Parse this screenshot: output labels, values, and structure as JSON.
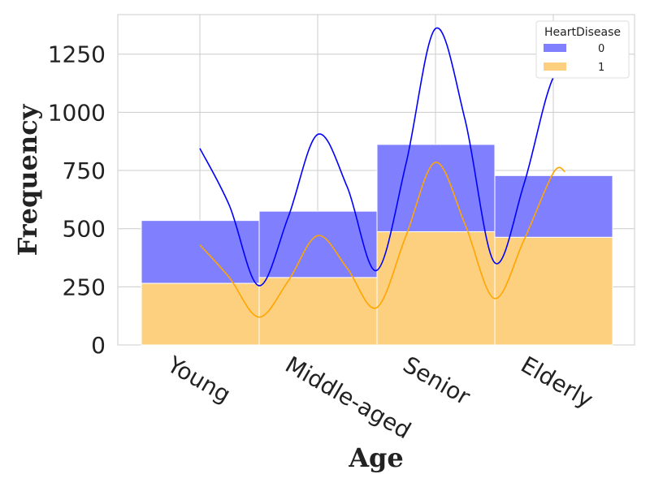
{
  "chart_data": {
    "type": "bar",
    "stacked": true,
    "xlabel": "Age",
    "ylabel": "Frequency",
    "categories": [
      "Young",
      "Middle-aged",
      "Senior",
      "Elderly"
    ],
    "series": [
      {
        "name": "0",
        "values": [
          270,
          285,
          375,
          265
        ],
        "color": "#8080ff"
      },
      {
        "name": "1",
        "values": [
          265,
          290,
          487,
          463
        ],
        "color": "#fdd07f"
      }
    ],
    "kde": [
      {
        "name": "0",
        "color": "#0000ff",
        "x": [
          0,
          0.25,
          0.5,
          0.75,
          1,
          1.25,
          1.5,
          1.75,
          2,
          2.25,
          2.5,
          2.75,
          3,
          3.25
        ],
        "y": [
          845,
          600,
          255,
          550,
          905,
          680,
          320,
          780,
          1360,
          970,
          355,
          690,
          1150,
          1230
        ]
      },
      {
        "name": "1",
        "color": "#ffa500",
        "x": [
          0,
          0.25,
          0.5,
          0.75,
          1,
          1.25,
          1.5,
          1.75,
          2,
          2.25,
          2.5,
          2.75,
          3,
          3.1
        ],
        "y": [
          430,
          290,
          120,
          275,
          470,
          330,
          160,
          470,
          785,
          520,
          200,
          450,
          740,
          745
        ]
      }
    ],
    "ylim": [
      0,
      1420
    ],
    "yticks": [
      0,
      250,
      500,
      750,
      1000,
      1250
    ],
    "legend": {
      "title": "HeartDisease",
      "placement": "top-right"
    },
    "grid": true
  }
}
